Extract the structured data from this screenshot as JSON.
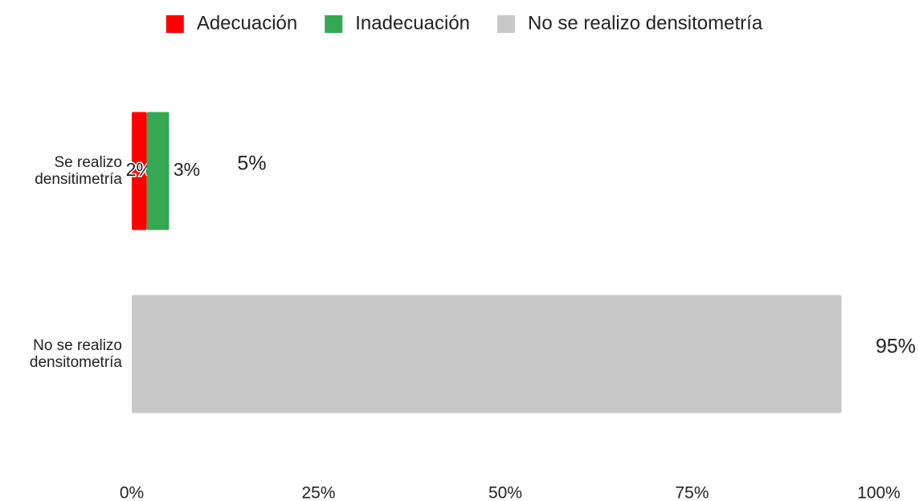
{
  "chart_data": {
    "type": "stacked_barh",
    "categories": [
      "Se realizo densitimetría",
      "No se realizo densitometría"
    ],
    "series": [
      {
        "name": "Adecuación",
        "color": "#ff0000",
        "values": [
          2,
          null
        ],
        "value_labels": [
          "2%",
          null
        ]
      },
      {
        "name": "Inadecuación",
        "color": "#34a853",
        "values": [
          3,
          null
        ],
        "value_labels": [
          "3%",
          null
        ]
      },
      {
        "name": "No se realizo densitometría",
        "color": "#c8c8c8",
        "values": [
          null,
          95
        ],
        "value_labels": [
          null,
          null
        ]
      }
    ],
    "totals": [
      5,
      95
    ],
    "total_labels": [
      "5%",
      "95%"
    ],
    "xlim": [
      0,
      100
    ],
    "xticks": [
      {
        "value": 0,
        "label": "0%"
      },
      {
        "value": 25,
        "label": "25%"
      },
      {
        "value": 50,
        "label": "50%"
      },
      {
        "value": 75,
        "label": "75%"
      },
      {
        "value": 100,
        "label": "100%"
      }
    ],
    "grid": false,
    "legend": "top"
  }
}
